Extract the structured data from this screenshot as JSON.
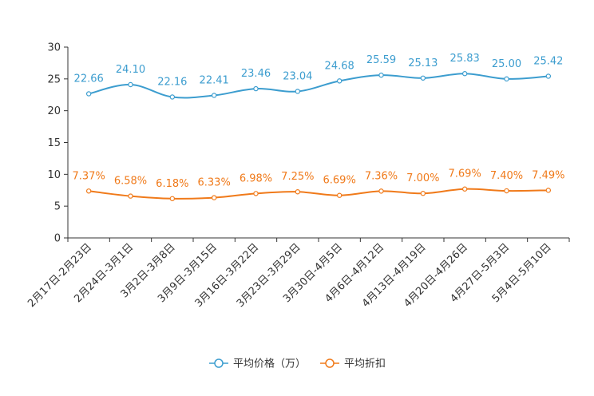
{
  "chart_data": {
    "type": "line",
    "title": "",
    "xlabel": "",
    "ylabel": "",
    "ylim": [
      0,
      30
    ],
    "yticks": [
      0,
      5,
      10,
      15,
      20,
      25,
      30
    ],
    "grid": false,
    "legend_position": "bottom-center",
    "categories": [
      "2月17日-2月23日",
      "2月24日-3月1日",
      "3月2日-3月8日",
      "3月9日-3月15日",
      "3月16日-3月22日",
      "3月23日-3月29日",
      "3月30日-4月5日",
      "4月6日-4月12日",
      "4月13日-4月19日",
      "4月20日-4月26日",
      "4月27日-5月3日",
      "5月4日-5月10日"
    ],
    "series": [
      {
        "name": "平均价格（万）",
        "color": "#3c9dcf",
        "values": [
          22.66,
          24.1,
          22.16,
          22.41,
          23.46,
          23.04,
          24.68,
          25.59,
          25.13,
          25.83,
          25.0,
          25.42
        ],
        "labels": [
          "22.66",
          "24.10",
          "22.16",
          "22.41",
          "23.46",
          "23.04",
          "24.68",
          "25.59",
          "25.13",
          "25.83",
          "25.00",
          "25.42"
        ]
      },
      {
        "name": "平均折扣",
        "color": "#f07a1a",
        "values": [
          7.37,
          6.58,
          6.18,
          6.33,
          6.98,
          7.25,
          6.69,
          7.36,
          7.0,
          7.69,
          7.4,
          7.49
        ],
        "labels": [
          "7.37%",
          "6.58%",
          "6.18%",
          "6.33%",
          "6.98%",
          "7.25%",
          "6.69%",
          "7.36%",
          "7.00%",
          "7.69%",
          "7.40%",
          "7.49%"
        ]
      }
    ]
  }
}
